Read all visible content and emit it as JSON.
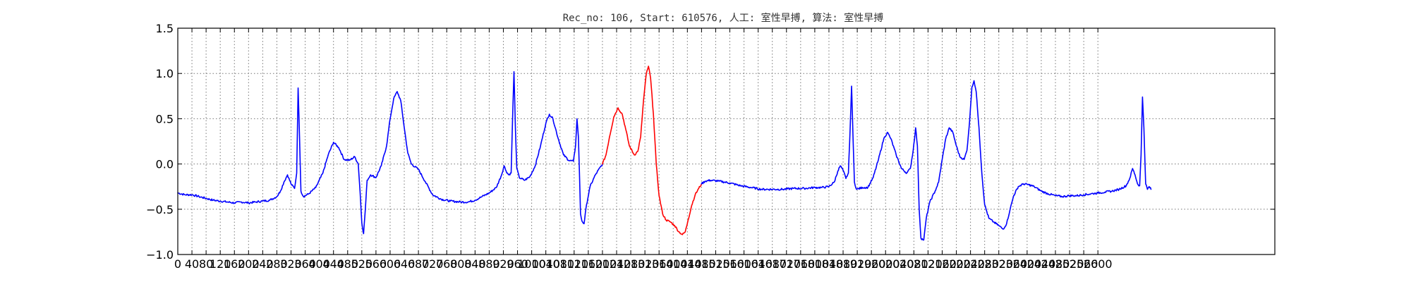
{
  "chart_data": {
    "type": "line",
    "title": "Rec_no: 106, Start: 610576, 人工: 室性早搏, 算法: 室性早搏",
    "xlabel": "",
    "ylabel": "",
    "xlim": [
      0,
      3100
    ],
    "ylim": [
      -1.0,
      1.5
    ],
    "grid": true,
    "y_ticks": [
      "1.5",
      "1.0",
      "0.5",
      "0.0",
      "−0.5",
      "−1.0"
    ],
    "x_ticks": [
      "0",
      "40",
      "80",
      "120",
      "160",
      "200",
      "240",
      "280",
      "320",
      "360",
      "400",
      "440",
      "480",
      "520",
      "560",
      "600",
      "640",
      "680",
      "720",
      "760",
      "800",
      "840",
      "880",
      "920",
      "960",
      "1000",
      "1040",
      "1080",
      "1120",
      "1160",
      "1200",
      "1240",
      "1280",
      "1320",
      "1360",
      "1400",
      "1440",
      "1480",
      "1520",
      "1560",
      "1600",
      "1640",
      "1680",
      "1720",
      "1760",
      "1800",
      "1840",
      "1880",
      "1920",
      "1960",
      "2000",
      "2040",
      "2080",
      "2120",
      "2160",
      "2200",
      "2240",
      "2280",
      "2320",
      "2360",
      "2400",
      "2440",
      "2480",
      "2520",
      "2560",
      "2600"
    ],
    "series": [
      {
        "color": "#0000ff",
        "points": [
          [
            0,
            -0.32
          ],
          [
            20,
            -0.34
          ],
          [
            40,
            -0.34
          ],
          [
            60,
            -0.36
          ],
          [
            80,
            -0.38
          ],
          [
            100,
            -0.4
          ],
          [
            120,
            -0.41
          ],
          [
            140,
            -0.42
          ],
          [
            160,
            -0.43
          ],
          [
            180,
            -0.42
          ],
          [
            200,
            -0.43
          ],
          [
            220,
            -0.42
          ],
          [
            240,
            -0.41
          ],
          [
            260,
            -0.4
          ],
          [
            280,
            -0.36
          ],
          [
            290,
            -0.3
          ],
          [
            300,
            -0.2
          ],
          [
            310,
            -0.12
          ],
          [
            320,
            -0.22
          ],
          [
            330,
            -0.27
          ],
          [
            336,
            -0.1
          ],
          [
            340,
            0.84
          ],
          [
            344,
            0.3
          ],
          [
            348,
            -0.3
          ],
          [
            355,
            -0.36
          ],
          [
            370,
            -0.33
          ],
          [
            390,
            -0.26
          ],
          [
            410,
            -0.1
          ],
          [
            425,
            0.1
          ],
          [
            440,
            0.24
          ],
          [
            455,
            0.18
          ],
          [
            470,
            0.05
          ],
          [
            485,
            0.04
          ],
          [
            500,
            0.08
          ],
          [
            510,
            0.0
          ],
          [
            515,
            -0.3
          ],
          [
            520,
            -0.65
          ],
          [
            525,
            -0.77
          ],
          [
            530,
            -0.5
          ],
          [
            535,
            -0.18
          ],
          [
            545,
            -0.12
          ],
          [
            560,
            -0.15
          ],
          [
            575,
            -0.02
          ],
          [
            590,
            0.2
          ],
          [
            600,
            0.5
          ],
          [
            610,
            0.72
          ],
          [
            620,
            0.8
          ],
          [
            630,
            0.7
          ],
          [
            640,
            0.4
          ],
          [
            650,
            0.12
          ],
          [
            660,
            0.0
          ],
          [
            680,
            -0.06
          ],
          [
            700,
            -0.2
          ],
          [
            720,
            -0.34
          ],
          [
            745,
            -0.39
          ],
          [
            770,
            -0.41
          ],
          [
            800,
            -0.42
          ],
          [
            820,
            -0.42
          ],
          [
            840,
            -0.4
          ],
          [
            860,
            -0.36
          ],
          [
            880,
            -0.32
          ],
          [
            900,
            -0.26
          ],
          [
            915,
            -0.12
          ],
          [
            922,
            -0.02
          ],
          [
            928,
            -0.08
          ],
          [
            935,
            -0.12
          ],
          [
            942,
            -0.1
          ],
          [
            946,
            0.5
          ],
          [
            950,
            1.02
          ],
          [
            954,
            0.4
          ],
          [
            958,
            -0.05
          ],
          [
            965,
            -0.15
          ],
          [
            980,
            -0.18
          ],
          [
            995,
            -0.14
          ],
          [
            1010,
            -0.02
          ],
          [
            1025,
            0.2
          ],
          [
            1040,
            0.45
          ],
          [
            1050,
            0.55
          ],
          [
            1060,
            0.5
          ],
          [
            1075,
            0.28
          ],
          [
            1090,
            0.1
          ],
          [
            1105,
            0.04
          ],
          [
            1118,
            0.03
          ],
          [
            1124,
            0.2
          ],
          [
            1128,
            0.5
          ],
          [
            1132,
            0.3
          ],
          [
            1135,
            -0.1
          ],
          [
            1138,
            -0.55
          ],
          [
            1142,
            -0.63
          ],
          [
            1148,
            -0.66
          ],
          [
            1155,
            -0.45
          ],
          [
            1165,
            -0.25
          ],
          [
            1180,
            -0.12
          ],
          [
            1200,
            0.0
          ]
        ]
      },
      {
        "color": "#ff0000",
        "points": [
          [
            1200,
            0.0
          ],
          [
            1210,
            0.1
          ],
          [
            1220,
            0.3
          ],
          [
            1232,
            0.52
          ],
          [
            1244,
            0.62
          ],
          [
            1256,
            0.55
          ],
          [
            1266,
            0.38
          ],
          [
            1276,
            0.2
          ],
          [
            1290,
            0.1
          ],
          [
            1300,
            0.14
          ],
          [
            1308,
            0.3
          ],
          [
            1316,
            0.7
          ],
          [
            1324,
            1.0
          ],
          [
            1330,
            1.08
          ],
          [
            1336,
            0.95
          ],
          [
            1344,
            0.55
          ],
          [
            1352,
            0.0
          ],
          [
            1360,
            -0.35
          ],
          [
            1370,
            -0.55
          ],
          [
            1380,
            -0.62
          ],
          [
            1392,
            -0.64
          ],
          [
            1404,
            -0.68
          ],
          [
            1416,
            -0.75
          ],
          [
            1426,
            -0.78
          ],
          [
            1434,
            -0.75
          ],
          [
            1442,
            -0.62
          ],
          [
            1452,
            -0.46
          ],
          [
            1462,
            -0.34
          ],
          [
            1472,
            -0.27
          ],
          [
            1480,
            -0.22
          ]
        ]
      },
      {
        "color": "#0000ff",
        "points": [
          [
            1480,
            -0.22
          ],
          [
            1490,
            -0.19
          ],
          [
            1505,
            -0.18
          ],
          [
            1530,
            -0.19
          ],
          [
            1560,
            -0.21
          ],
          [
            1590,
            -0.24
          ],
          [
            1620,
            -0.26
          ],
          [
            1650,
            -0.28
          ],
          [
            1680,
            -0.28
          ],
          [
            1710,
            -0.28
          ],
          [
            1740,
            -0.27
          ],
          [
            1770,
            -0.27
          ],
          [
            1800,
            -0.26
          ],
          [
            1820,
            -0.26
          ],
          [
            1840,
            -0.25
          ],
          [
            1855,
            -0.2
          ],
          [
            1865,
            -0.08
          ],
          [
            1872,
            -0.02
          ],
          [
            1880,
            -0.07
          ],
          [
            1888,
            -0.16
          ],
          [
            1895,
            -0.1
          ],
          [
            1900,
            0.4
          ],
          [
            1904,
            0.86
          ],
          [
            1908,
            0.3
          ],
          [
            1912,
            -0.2
          ],
          [
            1918,
            -0.28
          ],
          [
            1935,
            -0.26
          ],
          [
            1950,
            -0.26
          ],
          [
            1965,
            -0.15
          ],
          [
            1980,
            0.05
          ],
          [
            1995,
            0.28
          ],
          [
            2005,
            0.35
          ],
          [
            2015,
            0.28
          ],
          [
            2030,
            0.1
          ],
          [
            2045,
            -0.05
          ],
          [
            2060,
            -0.1
          ],
          [
            2070,
            -0.05
          ],
          [
            2078,
            0.15
          ],
          [
            2085,
            0.4
          ],
          [
            2090,
            0.2
          ],
          [
            2095,
            -0.5
          ],
          [
            2100,
            -0.82
          ],
          [
            2108,
            -0.84
          ],
          [
            2115,
            -0.6
          ],
          [
            2125,
            -0.42
          ],
          [
            2140,
            -0.3
          ],
          [
            2150,
            -0.2
          ],
          [
            2160,
            0.05
          ],
          [
            2170,
            0.28
          ],
          [
            2180,
            0.4
          ],
          [
            2190,
            0.35
          ],
          [
            2200,
            0.2
          ],
          [
            2210,
            0.08
          ],
          [
            2222,
            0.05
          ],
          [
            2230,
            0.15
          ],
          [
            2238,
            0.5
          ],
          [
            2244,
            0.85
          ],
          [
            2250,
            0.92
          ],
          [
            2256,
            0.8
          ],
          [
            2264,
            0.4
          ],
          [
            2272,
            -0.1
          ],
          [
            2280,
            -0.45
          ],
          [
            2292,
            -0.6
          ],
          [
            2305,
            -0.64
          ],
          [
            2320,
            -0.68
          ],
          [
            2332,
            -0.72
          ],
          [
            2342,
            -0.66
          ],
          [
            2352,
            -0.5
          ],
          [
            2362,
            -0.35
          ],
          [
            2375,
            -0.25
          ],
          [
            2390,
            -0.22
          ],
          [
            2405,
            -0.23
          ],
          [
            2420,
            -0.25
          ],
          [
            2440,
            -0.3
          ],
          [
            2460,
            -0.33
          ],
          [
            2480,
            -0.35
          ],
          [
            2500,
            -0.36
          ],
          [
            2520,
            -0.35
          ],
          [
            2540,
            -0.35
          ],
          [
            2560,
            -0.34
          ],
          [
            2580,
            -0.33
          ],
          [
            2600,
            -0.32
          ],
          [
            2620,
            -0.31
          ],
          [
            2640,
            -0.3
          ],
          [
            2660,
            -0.28
          ],
          [
            2680,
            -0.24
          ],
          [
            2690,
            -0.16
          ],
          [
            2698,
            -0.05
          ],
          [
            2705,
            -0.12
          ],
          [
            2712,
            -0.22
          ],
          [
            2718,
            -0.24
          ],
          [
            2722,
            0.1
          ],
          [
            2726,
            0.74
          ],
          [
            2730,
            0.4
          ],
          [
            2735,
            -0.22
          ],
          [
            2740,
            -0.28
          ],
          [
            2745,
            -0.25
          ],
          [
            2750,
            -0.28
          ]
        ]
      }
    ]
  }
}
